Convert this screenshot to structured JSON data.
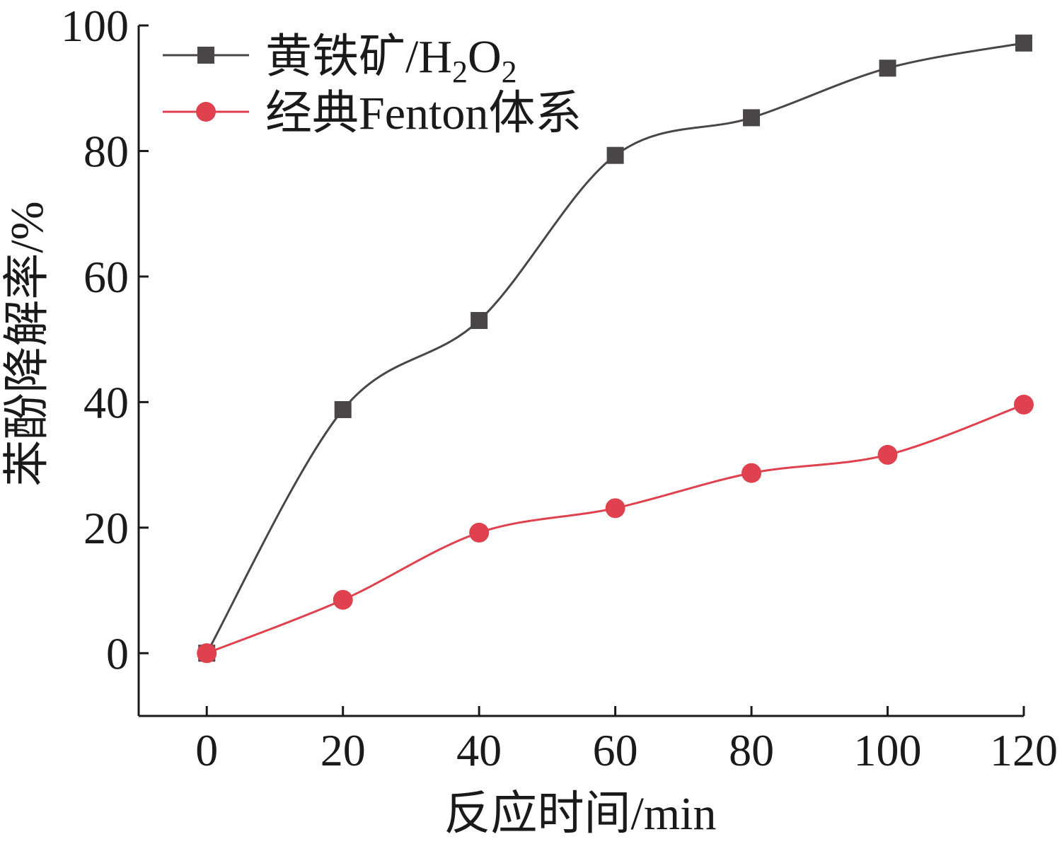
{
  "chart_data": {
    "type": "line",
    "title": "",
    "xlabel": "反应时间/min",
    "ylabel": "苯酚降解率/%",
    "x": [
      0,
      20,
      40,
      60,
      80,
      100,
      120
    ],
    "xlim": [
      -10,
      120
    ],
    "ylim": [
      -10,
      100
    ],
    "xticks": [
      "0",
      "20",
      "40",
      "60",
      "80",
      "100",
      "120"
    ],
    "yticks": [
      "0",
      "20",
      "40",
      "60",
      "80",
      "100"
    ],
    "grid": false,
    "legend_position": "top-left",
    "series": [
      {
        "name": "黄铁矿/H₂O₂",
        "name_parts": {
          "base": "黄铁矿/H",
          "sub1": "2",
          "mid": "O",
          "sub2": "2"
        },
        "marker": "square",
        "color": "#4a4546",
        "values": [
          0,
          38.8,
          53,
          79.3,
          85.3,
          93.2,
          97.2
        ]
      },
      {
        "name": "经典Fenton体系",
        "marker": "circle",
        "color": "#e0414f",
        "values": [
          0,
          8.5,
          19.2,
          23.1,
          28.7,
          31.6,
          39.6
        ]
      }
    ]
  }
}
